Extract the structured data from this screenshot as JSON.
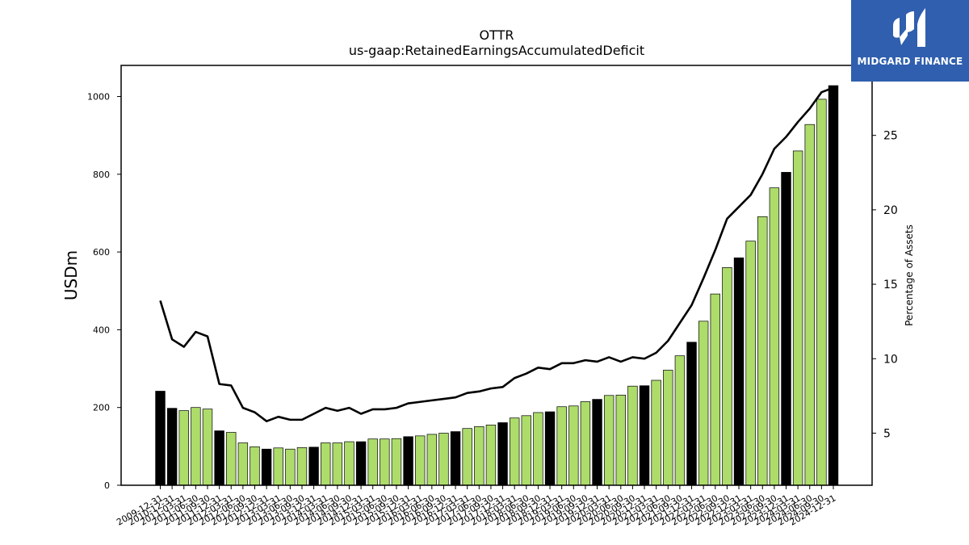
{
  "brand": {
    "name": "MIDGARD FINANCE",
    "logo_icon": "midgard-finance-logo-icon",
    "background_color": "#2f5fae"
  },
  "chart_data": {
    "type": "bar",
    "title": "OTTR",
    "subtitle": "us-gaap:RetainedEarningsAccumulatedDeficit",
    "ylabel": "USDm",
    "y2label": "Percentage of Assets",
    "ylim": [
      0,
      1080
    ],
    "y2lim": [
      1.5,
      29.7
    ],
    "yticks": [
      0,
      200,
      400,
      600,
      800,
      1000
    ],
    "y2ticks": [
      5,
      10,
      15,
      20,
      25
    ],
    "colors": {
      "annual": "#000000",
      "quarterly": "#addc6b",
      "line": "#000000"
    },
    "categories": [
      "2009-12-31",
      "2010-12-31",
      "2011-03-31",
      "2011-06-30",
      "2011-09-30",
      "2011-12-31",
      "2012-03-31",
      "2012-06-30",
      "2012-09-30",
      "2012-12-31",
      "2013-03-31",
      "2013-06-30",
      "2013-09-30",
      "2013-12-31",
      "2014-03-31",
      "2014-06-30",
      "2014-09-30",
      "2014-12-31",
      "2015-03-31",
      "2015-06-30",
      "2015-09-30",
      "2015-12-31",
      "2016-03-31",
      "2016-06-30",
      "2016-09-30",
      "2016-12-31",
      "2017-03-31",
      "2017-06-30",
      "2017-09-30",
      "2017-12-31",
      "2018-03-31",
      "2018-06-30",
      "2018-09-30",
      "2018-12-31",
      "2019-03-31",
      "2019-06-30",
      "2019-09-30",
      "2019-12-31",
      "2020-03-31",
      "2020-06-30",
      "2020-09-30",
      "2020-12-31",
      "2021-03-31",
      "2021-06-30",
      "2021-09-30",
      "2021-12-31",
      "2022-03-31",
      "2022-06-30",
      "2022-09-30",
      "2022-12-31",
      "2023-03-31",
      "2023-06-30",
      "2023-09-30",
      "2023-12-31",
      "2024-03-31",
      "2024-06-30",
      "2024-09-30",
      "2024-12-31"
    ],
    "series": [
      {
        "kind": "bar",
        "values": [
          242,
          198,
          192,
          200,
          196,
          140,
          136,
          109,
          99,
          93,
          96,
          93,
          97,
          98,
          109,
          109,
          112,
          112,
          119,
          119,
          120,
          125,
          127,
          131,
          134,
          138,
          146,
          151,
          155,
          161,
          173,
          179,
          187,
          189,
          202,
          204,
          215,
          221,
          231,
          232,
          255,
          256,
          270,
          296,
          333,
          368,
          422,
          492,
          560,
          585,
          628,
          691,
          765,
          805,
          860,
          928,
          993,
          1028
        ]
      },
      {
        "kind": "line",
        "axis": "right",
        "values": [
          13.9,
          11.3,
          10.8,
          11.8,
          11.5,
          8.3,
          8.2,
          6.7,
          6.4,
          5.8,
          6.1,
          5.9,
          5.9,
          6.3,
          6.7,
          6.5,
          6.7,
          6.3,
          6.6,
          6.6,
          6.7,
          7.0,
          7.1,
          7.2,
          7.3,
          7.4,
          7.7,
          7.8,
          8.0,
          8.1,
          8.7,
          9.0,
          9.4,
          9.3,
          9.7,
          9.7,
          9.9,
          9.8,
          10.1,
          9.8,
          10.1,
          10.0,
          10.4,
          11.2,
          12.4,
          13.6,
          15.4,
          17.3,
          19.4,
          20.2,
          21.0,
          22.4,
          24.1,
          24.9,
          25.9,
          26.8,
          27.9,
          28.2
        ]
      }
    ]
  }
}
